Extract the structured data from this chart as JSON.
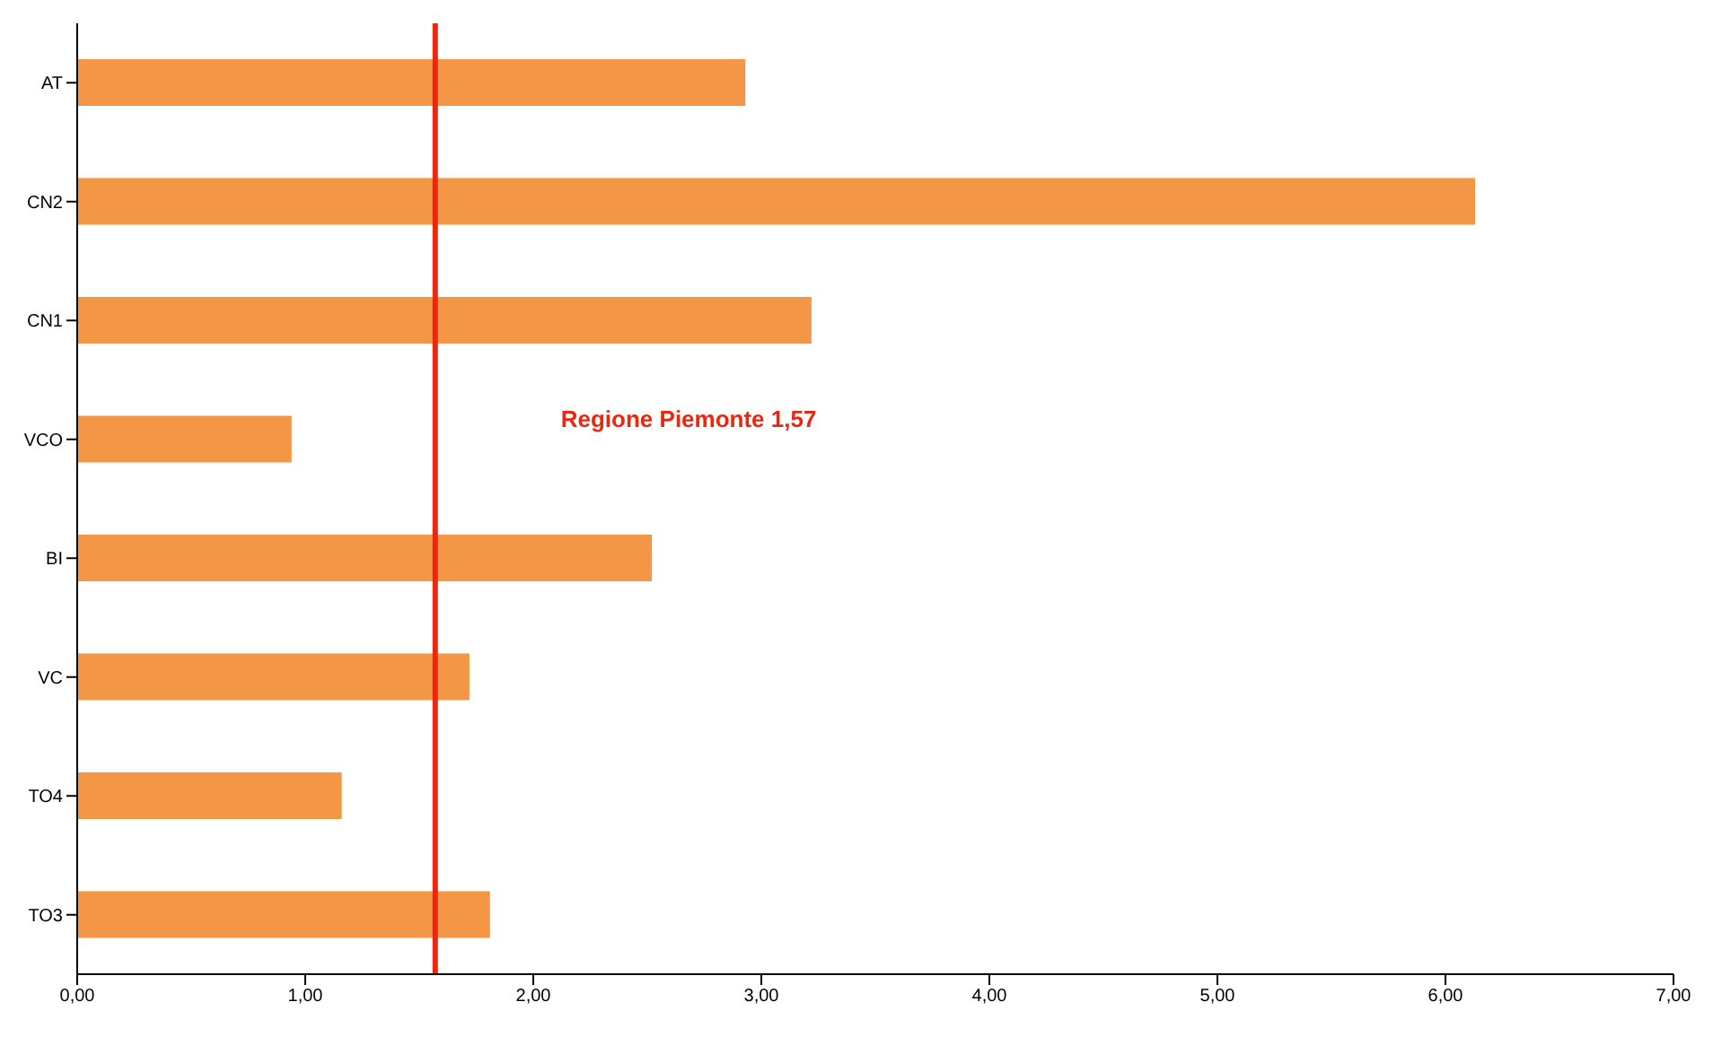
{
  "chart_data": {
    "type": "bar",
    "orientation": "horizontal",
    "categories": [
      "AT",
      "CN2",
      "CN1",
      "VCO",
      "BI",
      "VC",
      "TO4",
      "TO3"
    ],
    "values": [
      2.93,
      6.13,
      3.22,
      0.94,
      2.52,
      1.72,
      1.16,
      1.81
    ],
    "color": "#f39646",
    "xlim": [
      0,
      7
    ],
    "xticks": [
      {
        "value": 0,
        "label": "0,00"
      },
      {
        "value": 1,
        "label": "1,00"
      },
      {
        "value": 2,
        "label": "2,00"
      },
      {
        "value": 3,
        "label": "3,00"
      },
      {
        "value": 4,
        "label": "4,00"
      },
      {
        "value": 5,
        "label": "5,00"
      },
      {
        "value": 6,
        "label": "6,00"
      },
      {
        "value": 7,
        "label": "7,00"
      }
    ],
    "ref_lines": [
      {
        "axis": "x",
        "value": 1.57,
        "label": "Regione Piemonte 1,57",
        "color": "#e8290f"
      }
    ],
    "grid": false,
    "legend": false
  }
}
